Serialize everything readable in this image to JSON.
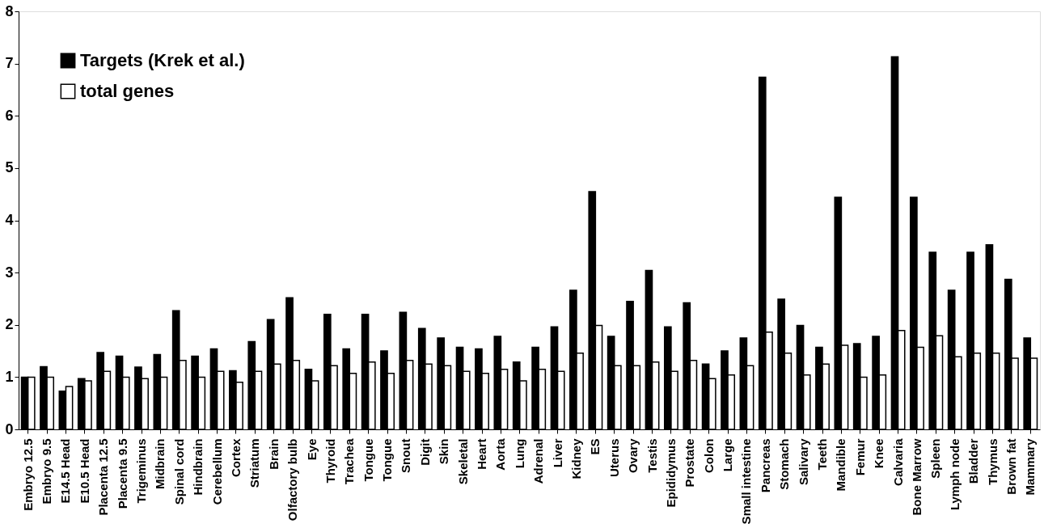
{
  "chart_data": {
    "type": "bar",
    "categories": [
      "Embryo 12.5",
      "Embryo 9.5",
      "E14.5 Head",
      "E10.5 Head",
      "Placenta 12.5",
      "Placenta 9.5",
      "Trigeminus",
      "Midbrain",
      "Spinal cord",
      "Hindbrain",
      "Cerebellum",
      "Cortex",
      "Striatum",
      "Brain",
      "Olfactory bulb",
      "Eye",
      "Thyroid",
      "Trachea",
      "Tongue",
      "Tongue",
      "Snout",
      "Digit",
      "Skin",
      "Skeletal",
      "Heart",
      "Aorta",
      "Lung",
      "Adrenal",
      "Liver",
      "Kidney",
      "ES",
      "Uterus",
      "Ovary",
      "Testis",
      "Epididymus",
      "Prostate",
      "Colon",
      "Large",
      "Small intestine",
      "Pancreas",
      "Stomach",
      "Salivary",
      "Teeth",
      "Mandible",
      "Femur",
      "Knee",
      "Calvaria",
      "Bone Marrow",
      "Spleen",
      "Lymph node",
      "Bladder",
      "Thymus",
      "Brown fat",
      "Mammary"
    ],
    "series": [
      {
        "name": "Targets (Krek et al.)",
        "color": "#000000",
        "values": [
          1.0,
          1.2,
          0.73,
          0.97,
          1.47,
          1.4,
          1.19,
          1.43,
          2.27,
          1.4,
          1.54,
          1.12,
          1.68,
          2.1,
          2.52,
          1.15,
          2.2,
          1.54,
          2.2,
          1.5,
          2.24,
          1.93,
          1.75,
          1.57,
          1.54,
          1.78,
          1.29,
          1.57,
          1.96,
          2.66,
          4.55,
          1.78,
          2.45,
          3.04,
          1.96,
          2.42,
          1.25,
          1.5,
          1.75,
          6.74,
          2.49,
          1.99,
          1.57,
          4.44,
          1.64,
          1.78,
          7.13,
          4.44,
          3.39,
          2.66,
          3.39,
          3.53,
          2.87,
          1.75
        ]
      },
      {
        "name": "total genes",
        "color": "#ffffff",
        "values": [
          1.0,
          1.0,
          0.82,
          0.93,
          1.11,
          1.0,
          0.97,
          1.0,
          1.32,
          1.0,
          1.11,
          0.9,
          1.11,
          1.25,
          1.32,
          0.93,
          1.22,
          1.07,
          1.29,
          1.07,
          1.32,
          1.25,
          1.22,
          1.11,
          1.07,
          1.15,
          0.93,
          1.15,
          1.11,
          1.46,
          1.99,
          1.22,
          1.22,
          1.29,
          1.11,
          1.32,
          0.97,
          1.04,
          1.22,
          1.86,
          1.46,
          1.04,
          1.25,
          1.61,
          1.0,
          1.04,
          1.89,
          1.57,
          1.79,
          1.39,
          1.46,
          1.46,
          1.36,
          1.36
        ]
      }
    ],
    "ylim": [
      0,
      8
    ],
    "yticks": [
      0,
      1,
      2,
      3,
      4,
      5,
      6,
      7,
      8
    ],
    "grid": false,
    "legend": "top left"
  }
}
